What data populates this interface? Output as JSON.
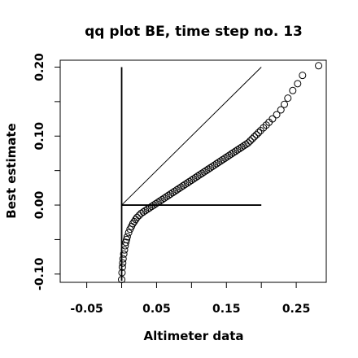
{
  "chart_data": {
    "type": "scatter",
    "title": "qq plot BE, time step no. 13",
    "xlabel": "Altimeter data",
    "ylabel": "Best estimate",
    "xlim": [
      -0.088,
      0.293
    ],
    "ylim": [
      -0.112,
      0.21
    ],
    "x_ticks": [
      -0.05,
      0.0,
      0.05,
      0.1,
      0.15,
      0.2,
      0.25
    ],
    "x_tick_labels": [
      {
        "value": -0.05,
        "label": "-0.05"
      },
      {
        "value": 0.05,
        "label": "0.05"
      },
      {
        "value": 0.15,
        "label": "0.15"
      },
      {
        "value": 0.25,
        "label": "0.25"
      }
    ],
    "y_ticks": [
      -0.1,
      -0.05,
      0.0,
      0.05,
      0.1,
      0.15,
      0.2
    ],
    "y_tick_labels": [
      {
        "value": -0.1,
        "label": "-0.10"
      },
      {
        "value": 0.0,
        "label": "0.00"
      },
      {
        "value": 0.1,
        "label": "0.10"
      },
      {
        "value": 0.2,
        "label": "0.20"
      }
    ],
    "grid": false,
    "reference_lines": [
      {
        "kind": "diagonal",
        "x": [
          0.0,
          0.2
        ],
        "y": [
          0.0,
          0.2
        ]
      },
      {
        "kind": "vertical",
        "x": [
          0.0,
          0.0
        ],
        "y": [
          -0.11,
          0.2
        ]
      },
      {
        "kind": "horizontal",
        "x": [
          0.0,
          0.2
        ],
        "y": [
          0.0,
          0.0
        ]
      }
    ],
    "points": {
      "x": [
        0.0,
        0.0005,
        0.001,
        0.0015,
        0.002,
        0.003,
        0.004,
        0.005,
        0.006,
        0.007,
        0.008,
        0.01,
        0.012,
        0.014,
        0.016,
        0.018,
        0.02,
        0.022,
        0.025,
        0.028,
        0.031,
        0.034,
        0.037,
        0.04,
        0.043,
        0.046,
        0.049,
        0.052,
        0.055,
        0.058,
        0.061,
        0.064,
        0.067,
        0.07,
        0.073,
        0.076,
        0.079,
        0.082,
        0.085,
        0.088,
        0.091,
        0.094,
        0.097,
        0.1,
        0.103,
        0.106,
        0.109,
        0.112,
        0.115,
        0.118,
        0.121,
        0.124,
        0.127,
        0.13,
        0.133,
        0.136,
        0.139,
        0.142,
        0.145,
        0.148,
        0.151,
        0.154,
        0.157,
        0.16,
        0.163,
        0.166,
        0.169,
        0.172,
        0.175,
        0.178,
        0.181,
        0.184,
        0.187,
        0.19,
        0.193,
        0.196,
        0.199,
        0.203,
        0.207,
        0.211,
        0.216,
        0.222,
        0.228,
        0.233,
        0.238,
        0.245,
        0.252,
        0.259,
        0.282
      ],
      "y": [
        -0.108,
        -0.098,
        -0.09,
        -0.084,
        -0.078,
        -0.071,
        -0.065,
        -0.059,
        -0.054,
        -0.05,
        -0.046,
        -0.04,
        -0.035,
        -0.031,
        -0.027,
        -0.024,
        -0.021,
        -0.018,
        -0.015,
        -0.012,
        -0.01,
        -0.008,
        -0.006,
        -0.004,
        -0.002,
        0.0,
        0.002,
        0.004,
        0.006,
        0.008,
        0.01,
        0.012,
        0.014,
        0.016,
        0.018,
        0.02,
        0.022,
        0.024,
        0.026,
        0.028,
        0.03,
        0.032,
        0.034,
        0.036,
        0.038,
        0.04,
        0.042,
        0.044,
        0.046,
        0.048,
        0.05,
        0.052,
        0.054,
        0.056,
        0.058,
        0.06,
        0.062,
        0.064,
        0.066,
        0.068,
        0.07,
        0.072,
        0.074,
        0.076,
        0.078,
        0.08,
        0.082,
        0.084,
        0.086,
        0.088,
        0.09,
        0.093,
        0.096,
        0.099,
        0.102,
        0.105,
        0.108,
        0.112,
        0.116,
        0.12,
        0.125,
        0.131,
        0.138,
        0.146,
        0.155,
        0.166,
        0.176,
        0.188,
        0.202
      ]
    }
  }
}
